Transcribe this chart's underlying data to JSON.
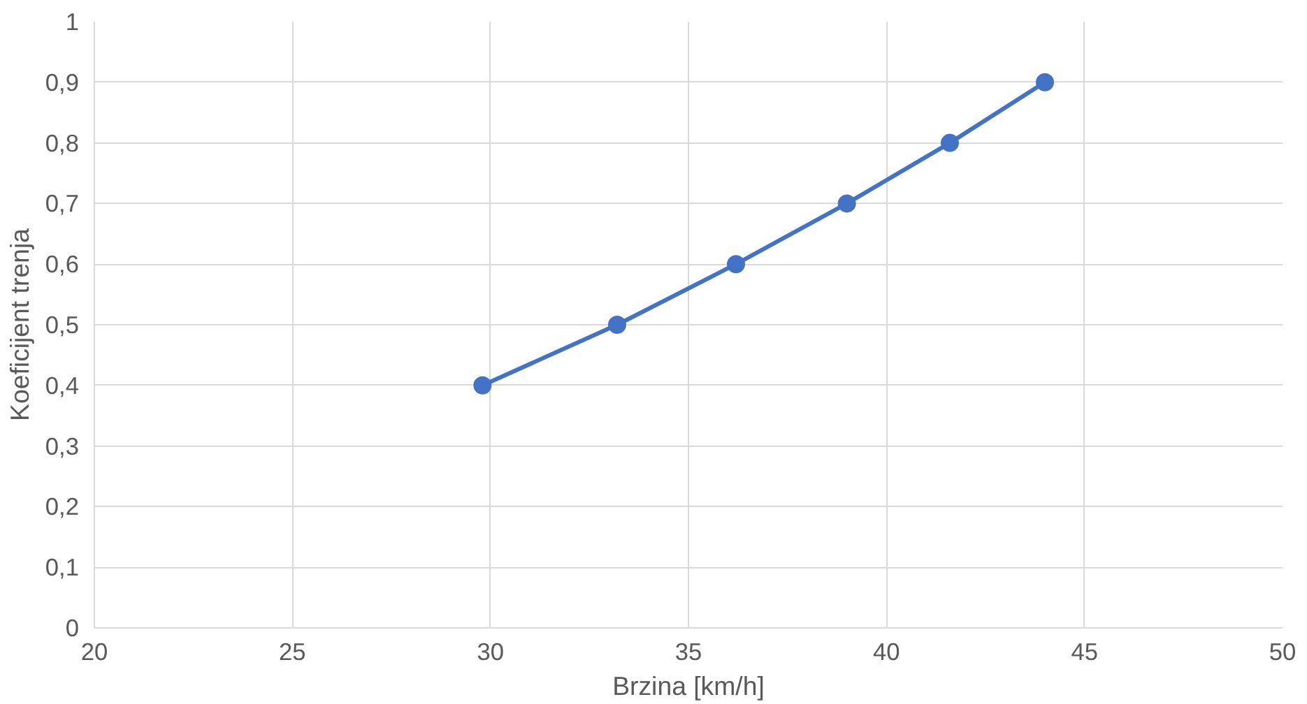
{
  "chart_data": {
    "type": "line",
    "xlabel": "Brzina [km/h]",
    "ylabel": "Koeficijent trenja",
    "x": [
      29.8,
      33.2,
      36.2,
      39.0,
      41.6,
      44.0
    ],
    "series": [
      {
        "color": "#4472c4",
        "values": [
          0.4,
          0.5,
          0.6,
          0.7,
          0.8,
          0.9
        ]
      }
    ],
    "xlim": [
      20,
      50
    ],
    "xticks": [
      20,
      25,
      30,
      35,
      40,
      45,
      50
    ],
    "ylim": [
      0,
      1
    ],
    "yticks": [
      0,
      {
        "value": 0.1,
        "label": "0,1"
      },
      {
        "value": 0.2,
        "label": "0,2"
      },
      {
        "value": 0.3,
        "label": "0,3"
      },
      {
        "value": 0.4,
        "label": "0,4"
      },
      {
        "value": 0.5,
        "label": "0,5"
      },
      {
        "value": 0.6,
        "label": "0,6"
      },
      {
        "value": 0.7,
        "label": "0,7"
      },
      {
        "value": 0.8,
        "label": "0,8"
      },
      {
        "value": 0.9,
        "label": "0,9"
      },
      1
    ],
    "grid": true,
    "marker": "circle",
    "line_style": "solid"
  }
}
